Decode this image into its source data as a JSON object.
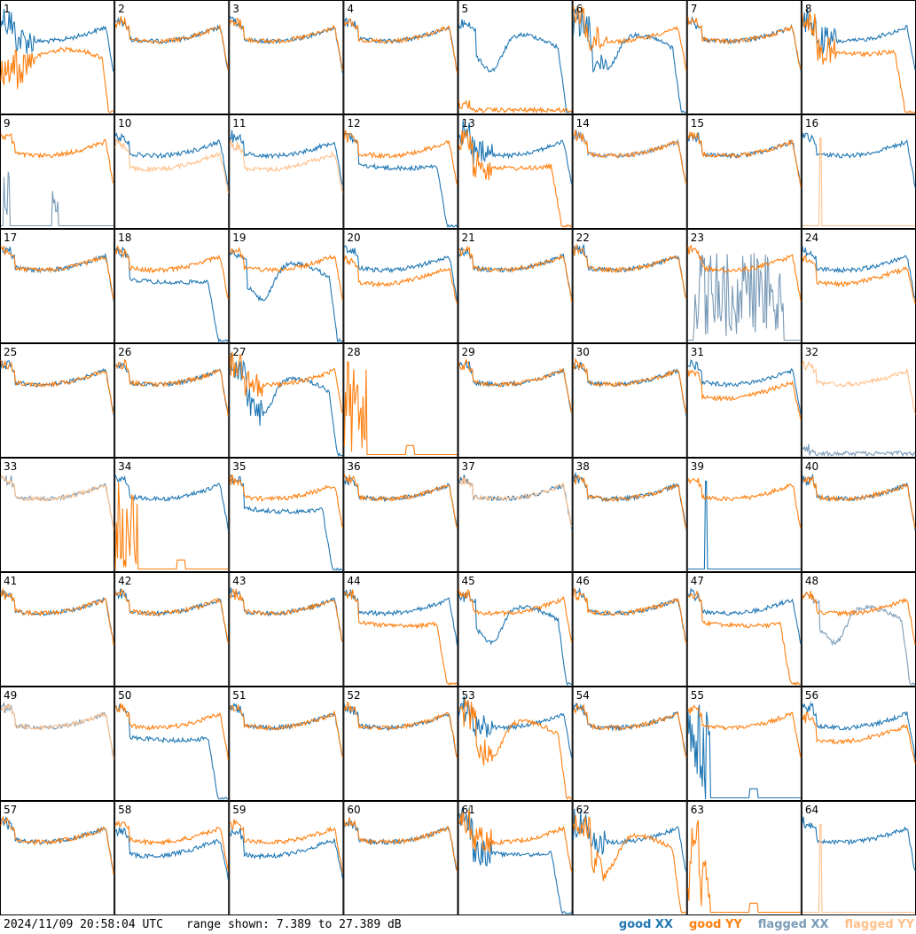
{
  "footer": {
    "timestamp": "2024/11/09 20:58:04 UTC",
    "range_text": "range shown: 7.389 to 27.389 dB"
  },
  "legend": [
    {
      "label": "good XX",
      "color": "#1f77b4"
    },
    {
      "label": "good YY",
      "color": "#ff7f0e"
    },
    {
      "label": "flagged XX",
      "color": "#7a9bb8"
    },
    {
      "label": "flagged YY",
      "color": "#ffc08a"
    }
  ],
  "chart_data": {
    "type": "line",
    "grid_rows": 8,
    "grid_cols": 8,
    "ylim": [
      7.389,
      27.389
    ],
    "y_unit": "dB",
    "panels": [
      {
        "id": 1,
        "xx": "good",
        "yy": "good",
        "xx_shape": "standard",
        "yy_shape": "low_hump",
        "noise": "high"
      },
      {
        "id": 2,
        "xx": "good",
        "yy": "good",
        "xx_shape": "standard",
        "yy_shape": "standard"
      },
      {
        "id": 3,
        "xx": "good",
        "yy": "good",
        "xx_shape": "standard",
        "yy_shape": "standard",
        "edge_drop": "right"
      },
      {
        "id": 4,
        "xx": "good",
        "yy": "good",
        "xx_shape": "standard",
        "yy_shape": "standard"
      },
      {
        "id": 5,
        "xx": "good",
        "yy": "good",
        "xx_shape": "dip",
        "yy_shape": "flat_low"
      },
      {
        "id": 6,
        "xx": "good",
        "yy": "good",
        "xx_shape": "dip",
        "yy_shape": "standard",
        "noise": "high"
      },
      {
        "id": 7,
        "xx": "good",
        "yy": "good",
        "xx_shape": "standard",
        "yy_shape": "standard"
      },
      {
        "id": 8,
        "xx": "good",
        "yy": "good",
        "xx_shape": "standard",
        "yy_shape": "drop",
        "noise": "high"
      },
      {
        "id": 9,
        "xx": "flagged",
        "yy": "good",
        "xx_shape": "spikes",
        "yy_shape": "standard"
      },
      {
        "id": 10,
        "xx": "good",
        "yy": "flagged",
        "xx_shape": "standard",
        "yy_shape": "lower"
      },
      {
        "id": 11,
        "xx": "good",
        "yy": "flagged",
        "xx_shape": "standard",
        "yy_shape": "lower"
      },
      {
        "id": 12,
        "xx": "good",
        "yy": "good",
        "xx_shape": "drop",
        "yy_shape": "standard"
      },
      {
        "id": 13,
        "xx": "good",
        "yy": "good",
        "xx_shape": "standard",
        "yy_shape": "drop",
        "noise": "high"
      },
      {
        "id": 14,
        "xx": "flagged",
        "yy": "good",
        "xx_shape": "standard",
        "yy_shape": "standard"
      },
      {
        "id": 15,
        "xx": "good",
        "yy": "good",
        "xx_shape": "standard",
        "yy_shape": "standard"
      },
      {
        "id": 16,
        "xx": "good",
        "yy": "flagged",
        "xx_shape": "standard",
        "yy_shape": "spike_single"
      },
      {
        "id": 17,
        "xx": "good",
        "yy": "good",
        "xx_shape": "standard",
        "yy_shape": "standard"
      },
      {
        "id": 18,
        "xx": "good",
        "yy": "good",
        "xx_shape": "drop",
        "yy_shape": "standard"
      },
      {
        "id": 19,
        "xx": "good",
        "yy": "good",
        "xx_shape": "dip",
        "yy_shape": "standard"
      },
      {
        "id": 20,
        "xx": "good",
        "yy": "good",
        "xx_shape": "standard",
        "yy_shape": "lower"
      },
      {
        "id": 21,
        "xx": "good",
        "yy": "good",
        "xx_shape": "standard",
        "yy_shape": "standard"
      },
      {
        "id": 22,
        "xx": "good",
        "yy": "good",
        "xx_shape": "standard",
        "yy_shape": "standard"
      },
      {
        "id": 23,
        "xx": "flagged",
        "yy": "good",
        "xx_shape": "noisy_band",
        "yy_shape": "standard"
      },
      {
        "id": 24,
        "xx": "good",
        "yy": "good",
        "xx_shape": "standard",
        "yy_shape": "lower"
      },
      {
        "id": 25,
        "xx": "good",
        "yy": "good",
        "xx_shape": "standard",
        "yy_shape": "standard"
      },
      {
        "id": 26,
        "xx": "good",
        "yy": "good",
        "xx_shape": "standard",
        "yy_shape": "standard"
      },
      {
        "id": 27,
        "xx": "good",
        "yy": "good",
        "xx_shape": "dip",
        "yy_shape": "standard",
        "noise": "high"
      },
      {
        "id": 28,
        "xx": "none",
        "yy": "good",
        "xx_shape": "none",
        "yy_shape": "spikes_left"
      },
      {
        "id": 29,
        "xx": "good",
        "yy": "good",
        "xx_shape": "standard",
        "yy_shape": "standard"
      },
      {
        "id": 30,
        "xx": "good",
        "yy": "good",
        "xx_shape": "standard",
        "yy_shape": "standard"
      },
      {
        "id": 31,
        "xx": "good",
        "yy": "good",
        "xx_shape": "standard",
        "yy_shape": "lower"
      },
      {
        "id": 32,
        "xx": "flagged",
        "yy": "flagged",
        "xx_shape": "flat_low",
        "yy_shape": "standard"
      },
      {
        "id": 33,
        "xx": "flagged",
        "yy": "flagged",
        "xx_shape": "standard",
        "yy_shape": "standard"
      },
      {
        "id": 34,
        "xx": "good",
        "yy": "good",
        "xx_shape": "standard",
        "yy_shape": "spikes_left"
      },
      {
        "id": 35,
        "xx": "good",
        "yy": "good",
        "xx_shape": "drop",
        "yy_shape": "standard"
      },
      {
        "id": 36,
        "xx": "good",
        "yy": "good",
        "xx_shape": "standard",
        "yy_shape": "standard"
      },
      {
        "id": 37,
        "xx": "good",
        "yy": "flagged",
        "xx_shape": "standard",
        "yy_shape": "standard"
      },
      {
        "id": 38,
        "xx": "good",
        "yy": "good",
        "xx_shape": "standard",
        "yy_shape": "standard"
      },
      {
        "id": 39,
        "xx": "good",
        "yy": "good",
        "xx_shape": "spike_single",
        "yy_shape": "standard"
      },
      {
        "id": 40,
        "xx": "good",
        "yy": "good",
        "xx_shape": "standard",
        "yy_shape": "standard"
      },
      {
        "id": 41,
        "xx": "good",
        "yy": "good",
        "xx_shape": "standard",
        "yy_shape": "standard"
      },
      {
        "id": 42,
        "xx": "good",
        "yy": "good",
        "xx_shape": "standard",
        "yy_shape": "standard"
      },
      {
        "id": 43,
        "xx": "good",
        "yy": "good",
        "xx_shape": "standard",
        "yy_shape": "standard"
      },
      {
        "id": 44,
        "xx": "good",
        "yy": "good",
        "xx_shape": "standard",
        "yy_shape": "drop"
      },
      {
        "id": 45,
        "xx": "good",
        "yy": "good",
        "xx_shape": "dip",
        "yy_shape": "standard"
      },
      {
        "id": 46,
        "xx": "good",
        "yy": "good",
        "xx_shape": "standard",
        "yy_shape": "standard"
      },
      {
        "id": 47,
        "xx": "good",
        "yy": "good",
        "xx_shape": "standard",
        "yy_shape": "drop"
      },
      {
        "id": 48,
        "xx": "flagged",
        "yy": "good",
        "xx_shape": "dip",
        "yy_shape": "standard"
      },
      {
        "id": 49,
        "xx": "flagged",
        "yy": "flagged",
        "xx_shape": "standard",
        "yy_shape": "standard"
      },
      {
        "id": 50,
        "xx": "good",
        "yy": "good",
        "xx_shape": "drop",
        "yy_shape": "standard"
      },
      {
        "id": 51,
        "xx": "good",
        "yy": "good",
        "xx_shape": "standard",
        "yy_shape": "standard"
      },
      {
        "id": 52,
        "xx": "good",
        "yy": "good",
        "xx_shape": "standard",
        "yy_shape": "standard"
      },
      {
        "id": 53,
        "xx": "good",
        "yy": "good",
        "xx_shape": "standard",
        "yy_shape": "dip",
        "noise": "high"
      },
      {
        "id": 54,
        "xx": "good",
        "yy": "good",
        "xx_shape": "standard",
        "yy_shape": "standard"
      },
      {
        "id": 55,
        "xx": "good",
        "yy": "good",
        "xx_shape": "spikes_left",
        "yy_shape": "standard"
      },
      {
        "id": 56,
        "xx": "good",
        "yy": "good",
        "xx_shape": "standard",
        "yy_shape": "lower"
      },
      {
        "id": 57,
        "xx": "good",
        "yy": "good",
        "xx_shape": "standard",
        "yy_shape": "standard"
      },
      {
        "id": 58,
        "xx": "good",
        "yy": "good",
        "xx_shape": "lower",
        "yy_shape": "standard"
      },
      {
        "id": 59,
        "xx": "good",
        "yy": "good",
        "xx_shape": "lower",
        "yy_shape": "standard"
      },
      {
        "id": 60,
        "xx": "good",
        "yy": "good",
        "xx_shape": "standard",
        "yy_shape": "standard"
      },
      {
        "id": 61,
        "xx": "good",
        "yy": "good",
        "xx_shape": "drop",
        "yy_shape": "standard",
        "noise": "high"
      },
      {
        "id": 62,
        "xx": "good",
        "yy": "good",
        "xx_shape": "standard",
        "yy_shape": "dip",
        "noise": "high"
      },
      {
        "id": 63,
        "xx": "none",
        "yy": "good",
        "xx_shape": "none",
        "yy_shape": "spikes_left"
      },
      {
        "id": 64,
        "xx": "good",
        "yy": "flagged",
        "xx_shape": "standard",
        "yy_shape": "spike_single"
      }
    ]
  }
}
